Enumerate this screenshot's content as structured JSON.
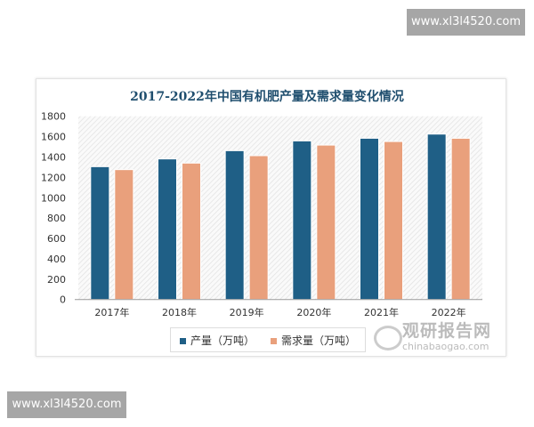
{
  "watermarks": [
    "www.xl3l4520.com",
    "www.xl3l4520.com"
  ],
  "logo": {
    "cn": "观研报告网",
    "en": "chinabaogao.com"
  },
  "chart_data": {
    "type": "bar",
    "title": "2017-2022年中国有机肥产量及需求量变化情况",
    "categories": [
      "2017年",
      "2018年",
      "2019年",
      "2020年",
      "2021年",
      "2022年"
    ],
    "series": [
      {
        "name": "产量（万吨）",
        "color": "#1f5f86",
        "values": [
          1305,
          1381,
          1462,
          1558,
          1584,
          1625
        ]
      },
      {
        "name": "需求量（万吨）",
        "color": "#e9a07c",
        "values": [
          1276,
          1340,
          1413,
          1517,
          1552,
          1584
        ]
      }
    ],
    "ylim": [
      0,
      1800
    ],
    "yticks": [
      0,
      200,
      400,
      600,
      800,
      1000,
      1200,
      1400,
      1600,
      1800
    ],
    "grid": false,
    "legend": "bottom"
  }
}
